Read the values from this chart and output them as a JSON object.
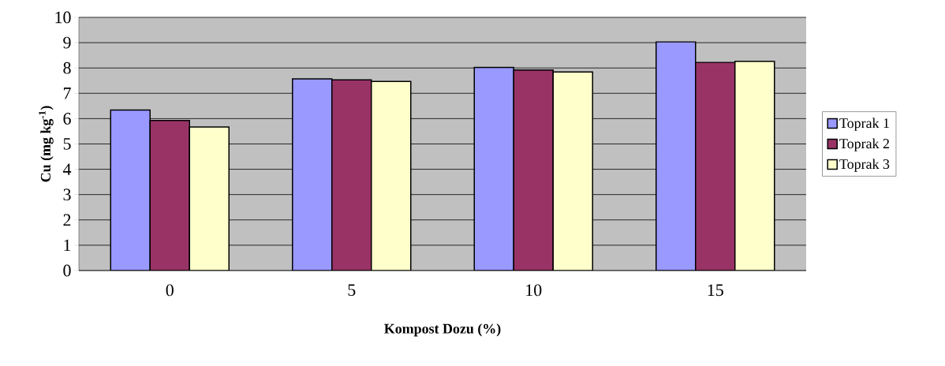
{
  "chart_data": {
    "type": "bar",
    "xlabel": "Kompost Dozu (%)",
    "ylabel": "Cu  (mg kg$^{-1}$)",
    "categories": [
      "0",
      "5",
      "10",
      "15"
    ],
    "series": [
      {
        "name": "Toprak 1",
        "color": "#9999ff",
        "values": [
          6.34,
          7.57,
          8.02,
          9.03
        ]
      },
      {
        "name": "Toprak 2",
        "color": "#993366",
        "values": [
          5.93,
          7.53,
          7.92,
          8.22
        ]
      },
      {
        "name": "Toprak 3",
        "color": "#ffffcc",
        "values": [
          5.67,
          7.47,
          7.84,
          8.26
        ]
      }
    ],
    "ylim": [
      0,
      10
    ],
    "yticks": [
      0,
      1,
      2,
      3,
      4,
      5,
      6,
      7,
      8,
      9,
      10
    ],
    "grid": "y",
    "legend": "right"
  }
}
